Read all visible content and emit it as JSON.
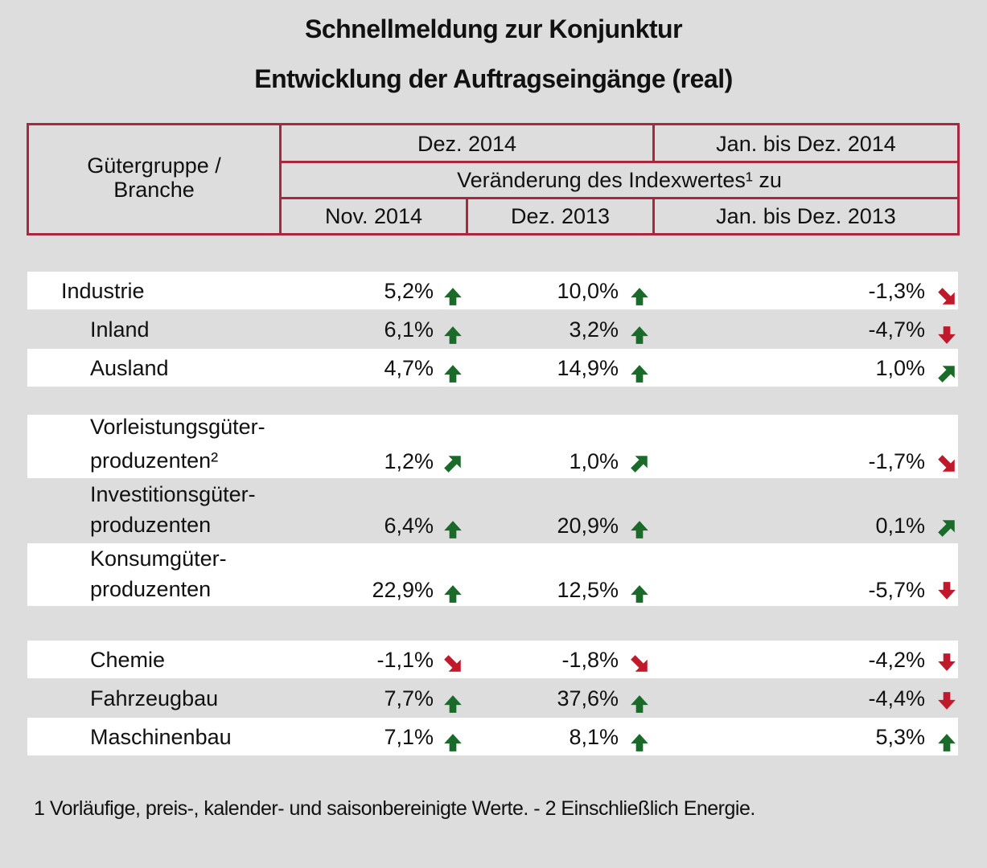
{
  "title": "Schnellmeldung zur Konjunktur",
  "subtitle": "Entwicklung der Auftragseingänge (real)",
  "header": {
    "group_label_1": "Gütergruppe /",
    "group_label_2": "Branche",
    "period_current": "Dez. 2014",
    "period_year": "Jan. bis Dez. 2014",
    "change_label": "Veränderung des Indexwertes¹ zu",
    "col_1": "Nov. 2014",
    "col_2": "Dez. 2013",
    "col_3": "Jan. bis Dez. 2013"
  },
  "rows": [
    {
      "label": "Industrie",
      "v1": "5,2%",
      "a1": "up",
      "v2": "10,0%",
      "a2": "up",
      "v3": "-1,3%",
      "a3": "down-right"
    },
    {
      "label": "Inland",
      "v1": "6,1%",
      "a1": "up",
      "v2": "3,2%",
      "a2": "up",
      "v3": "-4,7%",
      "a3": "down"
    },
    {
      "label": "Ausland",
      "v1": "4,7%",
      "a1": "up",
      "v2": "14,9%",
      "a2": "up",
      "v3": "1,0%",
      "a3": "up-right"
    },
    {
      "label_1": "Vorleistungsgüter-",
      "label_2": "produzenten²",
      "v1": "1,2%",
      "a1": "up-right",
      "v2": "1,0%",
      "a2": "up-right",
      "v3": "-1,7%",
      "a3": "down-right"
    },
    {
      "label_1": "Investitionsgüter-",
      "label_2": "produzenten",
      "v1": "6,4%",
      "a1": "up",
      "v2": "20,9%",
      "a2": "up",
      "v3": "0,1%",
      "a3": "up-right"
    },
    {
      "label_1": "Konsumgüter-",
      "label_2": "produzenten",
      "v1": "22,9%",
      "a1": "up",
      "v2": "12,5%",
      "a2": "up",
      "v3": "-5,7%",
      "a3": "down"
    },
    {
      "label": "Chemie",
      "v1": "-1,1%",
      "a1": "down-right",
      "v2": "-1,8%",
      "a2": "down-right",
      "v3": "-4,2%",
      "a3": "down"
    },
    {
      "label": "Fahrzeugbau",
      "v1": "7,7%",
      "a1": "up",
      "v2": "37,6%",
      "a2": "up",
      "v3": "-4,4%",
      "a3": "down"
    },
    {
      "label": "Maschinenbau",
      "v1": "7,1%",
      "a1": "up",
      "v2": "8,1%",
      "a2": "up",
      "v3": "5,3%",
      "a3": "up"
    }
  ],
  "colors": {
    "up": "#1a6b2a",
    "up_right": "#1a6b2a",
    "down": "#c0192b",
    "down_right": "#c0192b",
    "border": "#a8293d"
  },
  "footnote": "1 Vorläufige, preis-, kalender- und saisonbereinigte Werte. - 2 Einschließlich Energie."
}
